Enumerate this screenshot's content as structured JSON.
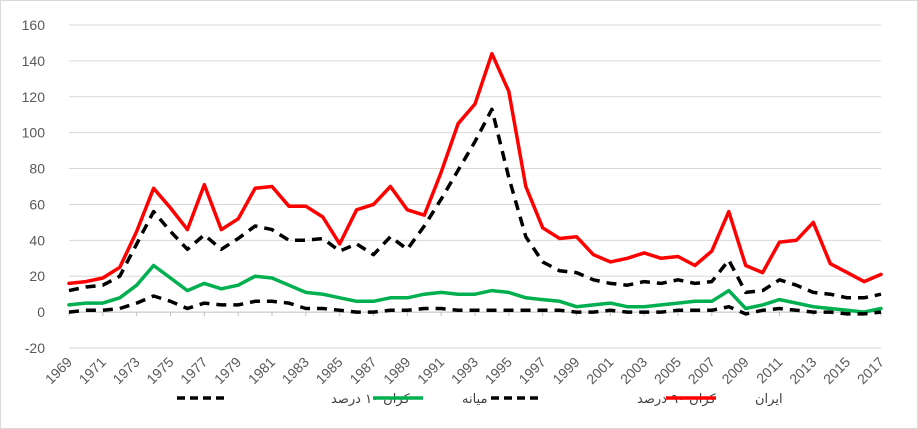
{
  "chart_data": {
    "type": "line",
    "title": "",
    "xlabel": "",
    "ylabel": "",
    "ylim": [
      -20,
      160
    ],
    "yticks": [
      "-20",
      "0",
      "20",
      "40",
      "60",
      "80",
      "100",
      "120",
      "140",
      "160"
    ],
    "x": [
      1969,
      1970,
      1971,
      1972,
      1973,
      1974,
      1975,
      1976,
      1977,
      1978,
      1979,
      1980,
      1981,
      1982,
      1983,
      1984,
      1985,
      1986,
      1987,
      1988,
      1989,
      1990,
      1991,
      1992,
      1993,
      1994,
      1995,
      1996,
      1997,
      1998,
      1999,
      2000,
      2001,
      2002,
      2003,
      2004,
      2005,
      2006,
      2007,
      2008,
      2009,
      2010,
      2011,
      2012,
      2013,
      2014,
      2015,
      2016,
      2017
    ],
    "xticks": [
      "1969",
      "1971",
      "1973",
      "1975",
      "1977",
      "1979",
      "1981",
      "1983",
      "1985",
      "1987",
      "1989",
      "1991",
      "1993",
      "1995",
      "1997",
      "1999",
      "2001",
      "2003",
      "2005",
      "2007",
      "2009",
      "2011",
      "2013",
      "2015",
      "2017"
    ],
    "grid": true,
    "legend_position": "bottom",
    "series": [
      {
        "name": "کران ۱۰ درصد",
        "color": "#000000",
        "dash": true,
        "values": [
          12,
          14,
          15,
          20,
          38,
          56,
          45,
          35,
          43,
          35,
          41,
          48,
          46,
          40,
          40,
          41,
          34,
          38,
          32,
          42,
          35,
          48,
          63,
          79,
          95,
          113,
          75,
          42,
          28,
          23,
          22,
          18,
          16,
          15,
          17,
          16,
          18,
          16,
          17,
          29,
          11,
          12,
          18,
          15,
          11,
          10,
          8,
          8,
          10
        ]
      },
      {
        "name": "میانه",
        "color": "#00b050",
        "dash": false,
        "values": [
          4,
          5,
          5,
          8,
          15,
          26,
          19,
          12,
          16,
          13,
          15,
          20,
          19,
          15,
          11,
          10,
          8,
          6,
          6,
          8,
          8,
          10,
          11,
          10,
          10,
          12,
          11,
          8,
          7,
          6,
          3,
          4,
          5,
          3,
          3,
          4,
          5,
          6,
          6,
          12,
          2,
          4,
          7,
          5,
          3,
          2,
          1,
          0,
          2
        ]
      },
      {
        "name": "کران ۹۰ درصد",
        "color": "#000000",
        "dash": true,
        "values": [
          0,
          1,
          1,
          2,
          5,
          9,
          6,
          2,
          5,
          4,
          4,
          6,
          6,
          5,
          2,
          2,
          1,
          0,
          0,
          1,
          1,
          2,
          2,
          1,
          1,
          1,
          1,
          1,
          1,
          1,
          0,
          0,
          1,
          0,
          0,
          0,
          1,
          1,
          1,
          3,
          -1,
          1,
          2,
          1,
          0,
          0,
          -1,
          -1,
          0
        ]
      },
      {
        "name": "ایران",
        "color": "#ff0000",
        "dash": false,
        "values": [
          16,
          17,
          19,
          25,
          45,
          69,
          58,
          46,
          71,
          46,
          52,
          69,
          70,
          59,
          59,
          53,
          38,
          57,
          60,
          70,
          57,
          54,
          78,
          105,
          116,
          144,
          123,
          70,
          47,
          41,
          42,
          32,
          28,
          30,
          33,
          30,
          31,
          26,
          34,
          56,
          26,
          22,
          39,
          40,
          50,
          27,
          22,
          17,
          21
        ]
      }
    ]
  }
}
